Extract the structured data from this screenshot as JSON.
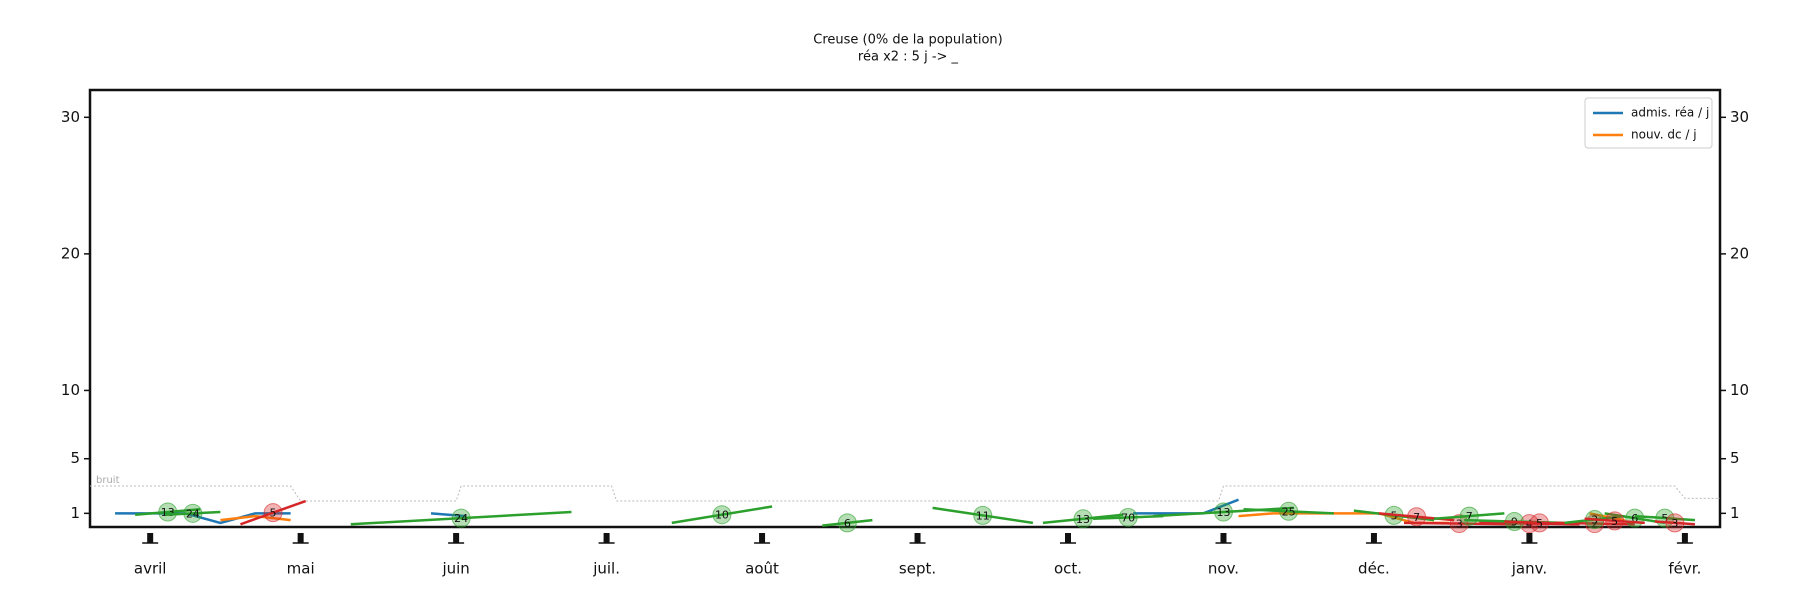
{
  "chart_data": {
    "type": "line",
    "title": "Creuse (0% de la population)",
    "subtitle": "réa x2 : 5 j -> _",
    "xlim": [
      -12,
      313
    ],
    "xticks": [
      {
        "value": 0,
        "label": "avril"
      },
      {
        "value": 30,
        "label": "mai"
      },
      {
        "value": 61,
        "label": "juin"
      },
      {
        "value": 91,
        "label": "juil."
      },
      {
        "value": 122,
        "label": "août"
      },
      {
        "value": 153,
        "label": "sept."
      },
      {
        "value": 183,
        "label": "oct."
      },
      {
        "value": 214,
        "label": "nov."
      },
      {
        "value": 244,
        "label": "déc."
      },
      {
        "value": 275,
        "label": "janv."
      },
      {
        "value": 306,
        "label": "févr."
      }
    ],
    "ylim": [
      0,
      32
    ],
    "yticks": [
      1,
      5,
      10,
      20,
      30
    ],
    "grid": false,
    "legend": "upper right",
    "x": [
      -7,
      0,
      7,
      14,
      21,
      28,
      35,
      42,
      49,
      56,
      63,
      70,
      77,
      84,
      91,
      98,
      105,
      112,
      119,
      126,
      133,
      140,
      147,
      154,
      161,
      168,
      175,
      182,
      189,
      196,
      203,
      210,
      217,
      224,
      231,
      238,
      245,
      252,
      259,
      266,
      273,
      280,
      287,
      294,
      301,
      308
    ],
    "series": [
      {
        "name": "admis. réa / j",
        "color": "#1f77b4",
        "values": [
          1.0,
          1.0,
          1.0,
          0.3,
          1.0,
          1.0,
          null,
          null,
          null,
          1.0,
          0.8,
          null,
          null,
          null,
          null,
          null,
          null,
          null,
          null,
          null,
          null,
          null,
          null,
          null,
          null,
          null,
          null,
          null,
          null,
          1.0,
          1.0,
          1.0,
          2.0,
          null,
          null,
          null,
          null,
          null,
          null,
          null,
          null,
          null,
          null,
          null,
          null,
          null
        ]
      },
      {
        "name": "nouv. dc / j",
        "color": "#ff7f0e",
        "values": [
          null,
          null,
          null,
          0.5,
          0.8,
          0.5,
          null,
          null,
          null,
          null,
          null,
          null,
          null,
          null,
          null,
          null,
          null,
          null,
          null,
          null,
          null,
          null,
          null,
          null,
          null,
          null,
          null,
          null,
          null,
          null,
          null,
          null,
          0.8,
          1.0,
          1.0,
          1.0,
          1.0,
          0.3,
          0.3,
          null,
          null,
          null,
          1.0,
          0.5,
          null,
          null
        ]
      }
    ],
    "noise": {
      "label": "bruit",
      "color": "#bbbbbb",
      "x": [
        -12,
        28,
        30,
        61,
        62,
        92,
        93,
        213,
        214,
        304,
        306,
        313
      ],
      "values": [
        3.0,
        3.0,
        1.9,
        1.9,
        3.0,
        3.0,
        1.9,
        1.9,
        3.0,
        3.0,
        2.1,
        2.1
      ]
    },
    "trends": [
      {
        "color": "#2ca02c",
        "x": [
          -3,
          10
        ],
        "y": [
          0.9,
          1.3
        ],
        "label": 13
      },
      {
        "color": "#2ca02c",
        "x": [
          3,
          14
        ],
        "y": [
          0.9,
          1.1
        ],
        "label": 24
      },
      {
        "color": "#d62728",
        "x": [
          18,
          31
        ],
        "y": [
          0.2,
          1.9
        ],
        "label": 5
      },
      {
        "color": "#2ca02c",
        "x": [
          40,
          84
        ],
        "y": [
          0.2,
          1.1
        ],
        "label": 24
      },
      {
        "color": "#2ca02c",
        "x": [
          104,
          124
        ],
        "y": [
          0.3,
          1.5
        ],
        "label": 10
      },
      {
        "color": "#2ca02c",
        "x": [
          134,
          144
        ],
        "y": [
          0.1,
          0.5
        ],
        "label": 6
      },
      {
        "color": "#2ca02c",
        "x": [
          156,
          176
        ],
        "y": [
          1.4,
          0.3
        ],
        "label": 11
      },
      {
        "color": "#2ca02c",
        "x": [
          178,
          194
        ],
        "y": [
          0.3,
          0.9
        ],
        "label": 13
      },
      {
        "color": "#2ca02c",
        "x": [
          188,
          202
        ],
        "y": [
          0.6,
          0.8
        ],
        "label": 70
      },
      {
        "color": "#2ca02c",
        "x": [
          200,
          228
        ],
        "y": [
          0.8,
          1.4
        ],
        "label": 13
      },
      {
        "color": "#2ca02c",
        "x": [
          218,
          236
        ],
        "y": [
          1.3,
          1.0
        ],
        "label": 25
      },
      {
        "color": "#2ca02c",
        "x": [
          240,
          256
        ],
        "y": [
          1.2,
          0.5
        ],
        "label": 5
      },
      {
        "color": "#d62728",
        "x": [
          245,
          260
        ],
        "y": [
          1.0,
          0.5
        ],
        "label": 7
      },
      {
        "color": "#d62728",
        "x": [
          250,
          272
        ],
        "y": [
          0.3,
          0.2
        ],
        "label": 3
      },
      {
        "color": "#2ca02c",
        "x": [
          256,
          270
        ],
        "y": [
          0.6,
          1.0
        ],
        "label": 7
      },
      {
        "color": "#d62728",
        "x": [
          265,
          285
        ],
        "y": [
          0.3,
          0.2
        ],
        "label": 4
      },
      {
        "color": "#2ca02c",
        "x": [
          262,
          282
        ],
        "y": [
          0.5,
          0.3
        ],
        "label": 9
      },
      {
        "color": "#d62728",
        "x": [
          270,
          284
        ],
        "y": [
          0.4,
          0.2
        ],
        "label": 5
      },
      {
        "color": "#d62728",
        "x": [
          280,
          296
        ],
        "y": [
          0.3,
          0.2
        ],
        "label": 2
      },
      {
        "color": "#2ca02c",
        "x": [
          282,
          294
        ],
        "y": [
          0.3,
          0.8
        ],
        "label": 3
      },
      {
        "color": "#2ca02c",
        "x": [
          290,
          302
        ],
        "y": [
          1.0,
          0.3
        ],
        "label": 6
      },
      {
        "color": "#d62728",
        "x": [
          286,
          298
        ],
        "y": [
          0.6,
          0.3
        ],
        "label": 5
      },
      {
        "color": "#2ca02c",
        "x": [
          296,
          308
        ],
        "y": [
          0.8,
          0.5
        ],
        "label": 5
      },
      {
        "color": "#d62728",
        "x": [
          300,
          308
        ],
        "y": [
          0.4,
          0.2
        ],
        "label": 3
      }
    ]
  }
}
